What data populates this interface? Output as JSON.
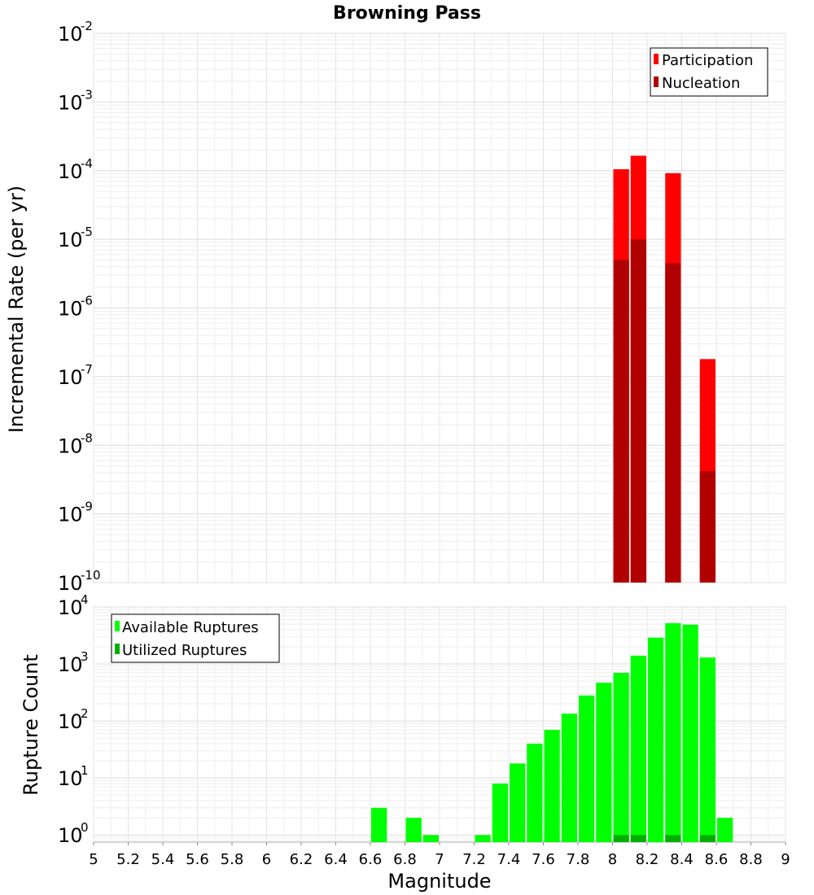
{
  "chart_data": [
    {
      "type": "bar",
      "title": "Browning Pass",
      "xlabel": "",
      "ylabel": "Incremental Rate (per yr)",
      "xlim": [
        5,
        9
      ],
      "ylim": [
        1e-10,
        0.01
      ],
      "yscale": "log",
      "bar_width": 0.1,
      "ytick_exponents": [
        -10,
        -9,
        -8,
        -7,
        -6,
        -5,
        -4,
        -3,
        -2
      ],
      "legend": [
        {
          "name": "Participation",
          "color": "#ff0000"
        },
        {
          "name": "Nucleation",
          "color": "#b00000"
        }
      ],
      "legend_position": "top-right",
      "series": [
        {
          "name": "Participation",
          "color": "#ff0000",
          "x": [
            8.05,
            8.15,
            8.35,
            8.55
          ],
          "values": [
            0.000105,
            0.000165,
            9.2e-05,
            1.8e-07
          ]
        },
        {
          "name": "Nucleation",
          "color": "#b00000",
          "x": [
            8.05,
            8.15,
            8.35,
            8.55
          ],
          "values": [
            5e-06,
            1e-05,
            4.5e-06,
            4.2e-09
          ]
        }
      ]
    },
    {
      "type": "bar",
      "title": "",
      "xlabel": "Magnitude",
      "ylabel": "Rupture Count",
      "xlim": [
        5,
        9
      ],
      "ylim": [
        0.75,
        10000
      ],
      "yscale": "log",
      "bar_width": 0.1,
      "ytick_exponents": [
        0,
        1,
        2,
        3,
        4
      ],
      "xticks": [
        "5",
        "5.2",
        "5.4",
        "5.6",
        "5.8",
        "6",
        "6.2",
        "6.4",
        "6.6",
        "6.8",
        "7",
        "7.2",
        "7.4",
        "7.6",
        "7.8",
        "8",
        "8.2",
        "8.4",
        "8.6",
        "8.8",
        "9"
      ],
      "legend": [
        {
          "name": "Available Ruptures",
          "color": "#00ff00"
        },
        {
          "name": "Utilized Ruptures",
          "color": "#00b000"
        }
      ],
      "legend_position": "top-left",
      "series": [
        {
          "name": "Available Ruptures",
          "color": "#00ff00",
          "x": [
            6.65,
            6.85,
            6.95,
            7.25,
            7.35,
            7.45,
            7.55,
            7.65,
            7.75,
            7.85,
            7.95,
            8.05,
            8.15,
            8.25,
            8.35,
            8.45,
            8.55,
            8.65
          ],
          "values": [
            3,
            2,
            1,
            1,
            8,
            18,
            40,
            70,
            135,
            280,
            470,
            700,
            1400,
            2900,
            5200,
            4900,
            1300,
            2
          ]
        },
        {
          "name": "Utilized Ruptures",
          "color": "#00b000",
          "x": [
            8.05,
            8.15,
            8.35,
            8.55
          ],
          "values": [
            1,
            1,
            1,
            1
          ]
        }
      ]
    }
  ]
}
